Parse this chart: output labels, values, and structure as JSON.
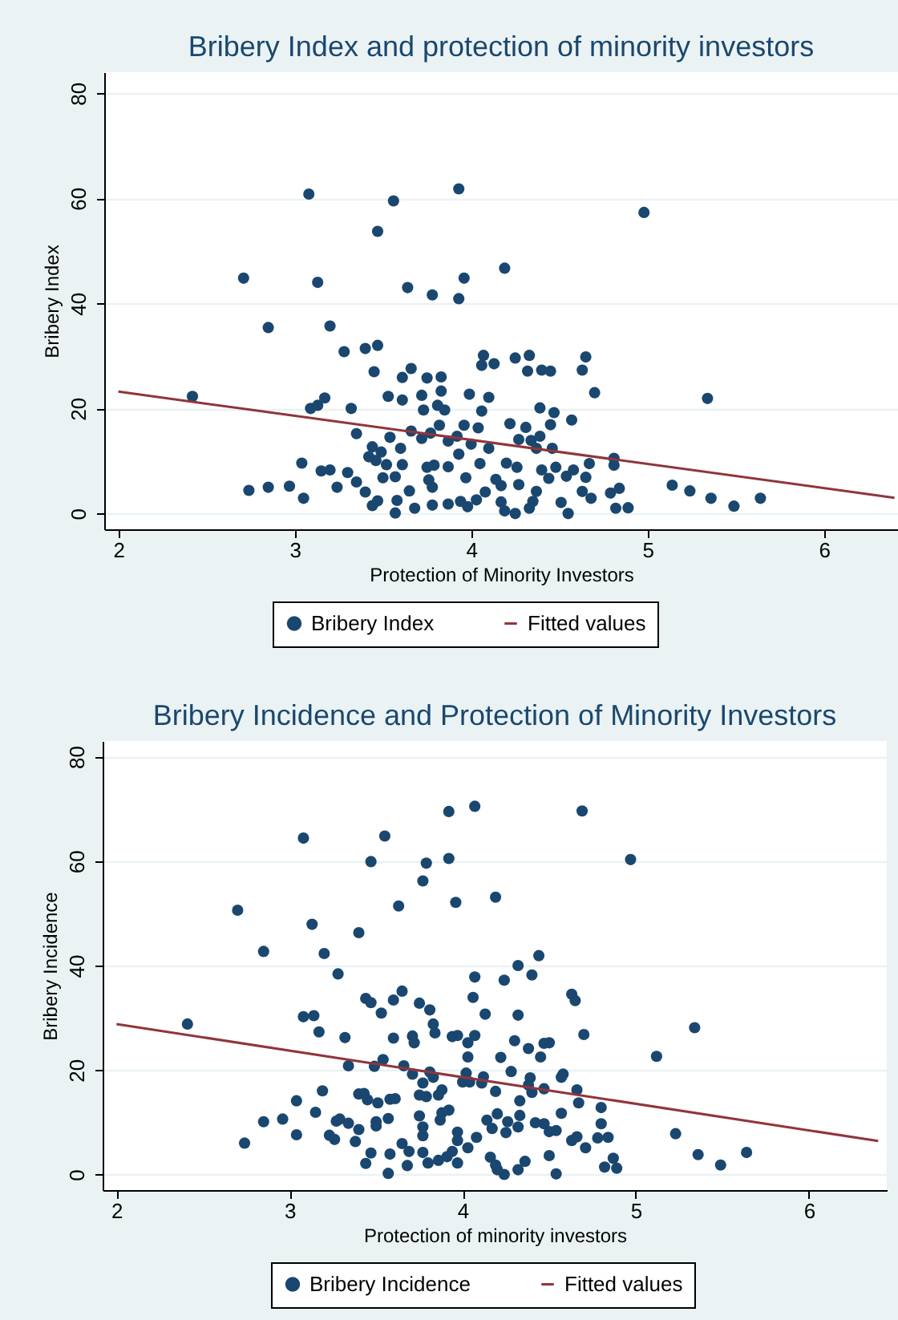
{
  "chart_data": [
    {
      "type": "scatter",
      "title": "Bribery Index and protection of minority investors",
      "xlabel": "Protection of Minority Investors",
      "ylabel": "Bribery Index",
      "xlim": [
        1.92,
        6.42
      ],
      "ylim": [
        -3,
        84
      ],
      "xticks": [
        2,
        3,
        4,
        5,
        6
      ],
      "yticks": [
        0,
        20,
        40,
        60,
        80
      ],
      "grid": "y",
      "legend": "bottom",
      "series": [
        {
          "name": "Bribery Index",
          "type": "scatter",
          "marker": "circle",
          "color": "#1a476f",
          "x": [
            3.08,
            3.93,
            3.56,
            3.47,
            4.98,
            2.71,
            3.13,
            3.64,
            3.78,
            3.93,
            3.96,
            4.19,
            2.85,
            3.2,
            3.28,
            3.4,
            3.47,
            3.45,
            3.61,
            3.66,
            3.75,
            3.83,
            3.83,
            3.72,
            3.53,
            3.61,
            3.73,
            3.81,
            3.85,
            3.99,
            4.07,
            4.06,
            4.13,
            4.25,
            4.33,
            4.32,
            4.4,
            4.45,
            4.63,
            4.65,
            4.7,
            4.1,
            4.06,
            4.22,
            4.31,
            4.39,
            4.47,
            4.45,
            4.57,
            5.34,
            2.42,
            3.09,
            3.13,
            3.17,
            3.32,
            3.35,
            3.54,
            3.66,
            3.72,
            3.77,
            3.82,
            3.92,
            3.96,
            4.04,
            3.87,
            4.0,
            4.1,
            4.27,
            4.34,
            4.37,
            4.39,
            4.46,
            3.44,
            3.49,
            3.42,
            3.46,
            3.6,
            3.93,
            3.04,
            3.15,
            3.2,
            3.3,
            3.52,
            3.61,
            3.75,
            3.79,
            3.87,
            4.05,
            4.2,
            4.26,
            4.4,
            4.48,
            4.58,
            4.67,
            4.81,
            4.81,
            3.5,
            3.57,
            3.76,
            3.97,
            4.14,
            4.44,
            4.54,
            4.65,
            2.74,
            2.85,
            2.97,
            3.24,
            3.35,
            3.4,
            3.65,
            3.78,
            4.08,
            4.17,
            4.27,
            4.37,
            4.63,
            4.68,
            4.79,
            4.84,
            5.14,
            5.24,
            5.36,
            5.49,
            5.64,
            3.05,
            3.44,
            3.47,
            3.58,
            3.57,
            3.68,
            3.78,
            3.87,
            3.94,
            3.98,
            4.03,
            4.17,
            4.19,
            4.25,
            4.33,
            4.35,
            4.51,
            4.55,
            4.82,
            4.89
          ],
          "values": [
            60.8,
            61.8,
            59.5,
            53.7,
            57.3,
            44.8,
            44.0,
            43.0,
            41.6,
            40.9,
            44.8,
            46.7,
            35.4,
            35.7,
            30.8,
            31.4,
            32.0,
            27.0,
            25.9,
            27.6,
            25.8,
            26.0,
            23.3,
            22.5,
            22.3,
            21.6,
            19.7,
            20.6,
            19.7,
            22.7,
            30.1,
            28.2,
            28.5,
            29.6,
            30.1,
            27.1,
            27.3,
            27.1,
            27.3,
            29.8,
            23.0,
            22.1,
            19.5,
            17.1,
            16.4,
            20.1,
            19.2,
            16.9,
            17.8,
            21.9,
            22.3,
            20.0,
            20.6,
            22.0,
            20.0,
            15.2,
            14.5,
            15.7,
            14.3,
            15.3,
            16.8,
            14.7,
            16.8,
            16.3,
            13.8,
            13.2,
            12.4,
            14.1,
            13.9,
            12.4,
            14.7,
            12.4,
            12.7,
            11.7,
            10.8,
            10.1,
            12.4,
            11.3,
            9.6,
            8.1,
            8.3,
            7.8,
            9.3,
            9.3,
            8.8,
            9.2,
            8.9,
            9.5,
            9.6,
            8.8,
            8.3,
            8.8,
            8.3,
            9.5,
            10.5,
            9.2,
            6.8,
            7.0,
            6.4,
            6.8,
            6.5,
            6.7,
            7.1,
            6.9,
            4.4,
            5.0,
            5.2,
            5.0,
            6.0,
            4.1,
            4.3,
            5.0,
            4.1,
            5.3,
            5.5,
            4.2,
            4.2,
            2.9,
            3.9,
            4.8,
            5.4,
            4.3,
            2.9,
            1.4,
            2.9,
            2.9,
            1.5,
            2.4,
            2.5,
            0.1,
            1.0,
            1.6,
            1.8,
            2.3,
            1.3,
            2.6,
            2.2,
            0.5,
            0.0,
            1.0,
            2.3,
            2.1,
            0.0,
            1.0,
            1.1
          ]
        },
        {
          "name": "Fitted values",
          "type": "line",
          "color": "#90353b",
          "x": [
            2,
            6.4
          ],
          "values": [
            23.2,
            3.0
          ]
        }
      ]
    },
    {
      "type": "scatter",
      "title": "Bribery Incidence and Protection of Minority Investors",
      "xlabel": "Protection of minority investors",
      "ylabel": "Bribery Incidence",
      "xlim": [
        1.92,
        6.45
      ],
      "ylim": [
        -3,
        83
      ],
      "xticks": [
        2,
        3,
        4,
        5,
        6
      ],
      "yticks": [
        0,
        20,
        40,
        60,
        80
      ],
      "grid": "y",
      "legend": "bottom",
      "series": [
        {
          "name": "Bribery Incidence",
          "type": "scatter",
          "marker": "circle",
          "color": "#1a476f",
          "x": [
            2.7,
            3.08,
            3.13,
            3.4,
            3.47,
            3.55,
            3.63,
            3.77,
            3.79,
            3.92,
            3.92,
            3.96,
            4.07,
            4.19,
            4.69,
            4.97,
            2.85,
            3.2,
            3.28,
            4.32,
            4.4,
            4.44,
            4.24,
            4.07,
            3.65,
            3.44,
            3.47,
            3.6,
            3.75,
            3.81,
            3.53,
            4.06,
            4.13,
            4.32,
            4.63,
            4.65,
            3.83,
            3.84,
            2.41,
            3.08,
            3.14,
            3.17,
            3.32,
            3.6,
            3.71,
            3.72,
            3.94,
            3.97,
            4.07,
            4.03,
            4.3,
            4.47,
            4.5,
            4.7,
            5.34,
            5.12,
            4.03,
            4.38,
            4.45,
            4.22,
            3.34,
            3.49,
            3.54,
            3.66,
            3.71,
            3.81,
            3.83,
            3.77,
            4.02,
            4.0,
            4.04,
            4.12,
            4.11,
            4.28,
            4.39,
            4.38,
            4.4,
            4.47,
            4.57,
            4.58,
            4.66,
            4.67,
            3.88,
            3.86,
            3.75,
            3.79,
            4.19,
            4.33,
            3.4,
            3.43,
            3.45,
            3.51,
            3.58,
            3.61,
            3.19,
            3.04,
            3.15,
            2.85,
            2.96,
            3.04,
            2.74,
            3.27,
            3.29,
            3.34,
            3.4,
            3.23,
            3.26,
            3.38,
            3.5,
            3.5,
            3.57,
            3.75,
            3.77,
            3.77,
            3.88,
            3.92,
            3.87,
            3.97,
            3.97,
            4.08,
            4.14,
            4.17,
            4.2,
            4.26,
            4.25,
            4.32,
            4.33,
            4.42,
            4.47,
            4.5,
            4.54,
            4.57,
            4.63,
            4.66,
            4.71,
            4.8,
            4.8,
            4.78,
            4.84,
            5.23,
            3.65,
            3.69,
            3.58,
            3.47,
            3.44,
            3.68,
            3.77,
            3.8,
            3.86,
            3.91,
            3.94,
            3.97,
            4.03,
            4.16,
            4.19,
            4.2,
            4.24,
            4.32,
            4.36,
            4.5,
            4.54,
            4.82,
            4.87,
            4.89,
            5.36,
            5.49,
            5.64,
            3.57
          ],
          "values": [
            50.6,
            64.4,
            47.9,
            46.3,
            59.9,
            64.8,
            51.4,
            56.2,
            59.6,
            69.5,
            60.5,
            52.1,
            70.5,
            53.1,
            69.6,
            60.3,
            42.7,
            42.3,
            38.4,
            40.0,
            38.2,
            41.9,
            37.2,
            37.8,
            35.1,
            33.7,
            32.9,
            33.4,
            32.8,
            31.5,
            30.9,
            33.9,
            30.7,
            30.5,
            34.5,
            33.3,
            28.8,
            27.1,
            28.8,
            30.2,
            30.4,
            27.3,
            26.2,
            26.1,
            26.5,
            25.2,
            26.4,
            26.6,
            26.6,
            25.2,
            25.6,
            25.1,
            25.2,
            26.8,
            28.1,
            22.6,
            22.5,
            24.1,
            22.5,
            22.4,
            20.8,
            20.7,
            22.0,
            20.8,
            19.2,
            19.6,
            18.6,
            17.5,
            19.4,
            17.7,
            17.7,
            18.7,
            17.5,
            19.7,
            18.5,
            17.1,
            15.7,
            16.4,
            18.6,
            19.2,
            16.2,
            13.7,
            16.2,
            15.2,
            15.2,
            14.9,
            15.9,
            14.1,
            15.4,
            15.5,
            14.3,
            13.7,
            14.4,
            14.5,
            16.0,
            14.1,
            11.9,
            10.1,
            10.6,
            7.6,
            6.0,
            10.2,
            10.6,
            9.8,
            8.6,
            7.5,
            6.7,
            6.3,
            10.1,
            9.3,
            10.7,
            11.2,
            9.1,
            7.4,
            11.8,
            12.3,
            10.4,
            8.1,
            6.5,
            7.1,
            10.4,
            8.8,
            11.6,
            10.1,
            8.0,
            9.1,
            11.3,
            9.9,
            9.7,
            8.2,
            8.4,
            11.7,
            6.5,
            7.2,
            5.1,
            12.8,
            9.7,
            7.0,
            7.1,
            7.8,
            5.9,
            4.4,
            3.9,
            4.1,
            2.1,
            1.7,
            4.2,
            2.2,
            2.7,
            3.4,
            4.4,
            2.2,
            5.1,
            3.3,
            1.8,
            0.9,
            0.0,
            0.9,
            2.5,
            3.6,
            0.1,
            1.4,
            3.1,
            1.2,
            3.8,
            1.8,
            4.2,
            0.2
          ]
        },
        {
          "name": "Fitted values",
          "type": "line",
          "color": "#90353b",
          "x": [
            2,
            6.4
          ],
          "values": [
            28.8,
            6.4
          ]
        }
      ]
    }
  ]
}
